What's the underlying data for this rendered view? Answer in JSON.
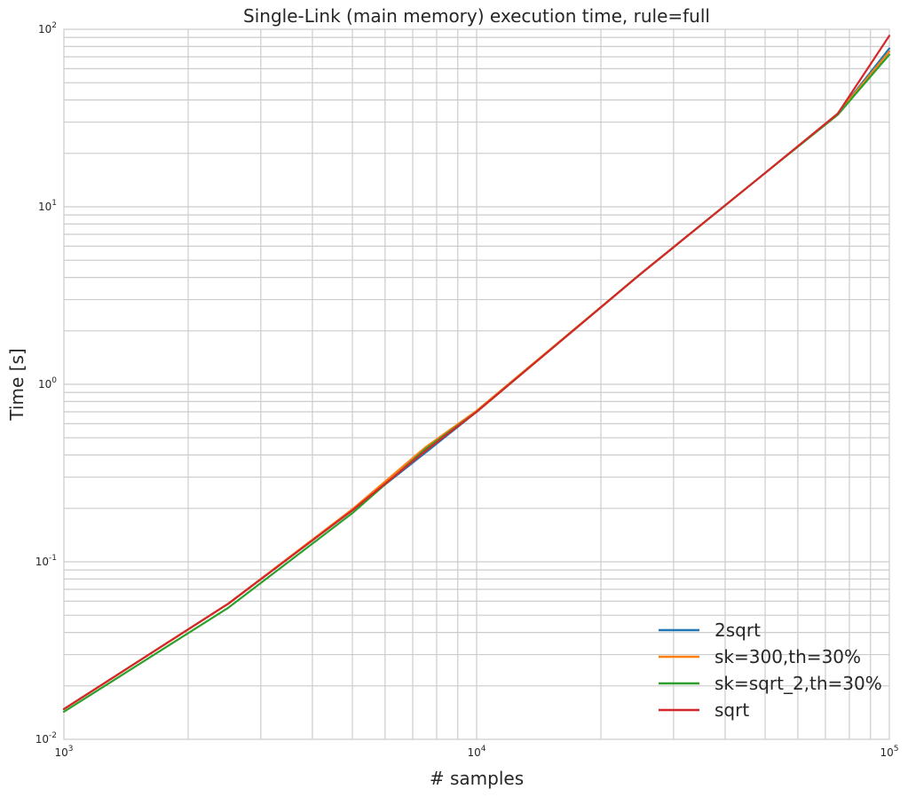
{
  "chart_data": {
    "type": "line",
    "title": "Single-Link (main memory) execution time, rule=full",
    "xlabel": "# samples",
    "ylabel": "Time [s]",
    "xscale": "log",
    "yscale": "log",
    "xlim": [
      1000,
      100000
    ],
    "ylim": [
      0.01,
      100
    ],
    "grid": true,
    "legend_position": "lower-right",
    "x_ticks": [
      {
        "base": "10",
        "exp": "3",
        "value": 1000
      },
      {
        "base": "10",
        "exp": "4",
        "value": 10000
      },
      {
        "base": "10",
        "exp": "5",
        "value": 100000
      }
    ],
    "y_ticks": [
      {
        "base": "10",
        "exp": "-2",
        "value": 0.01
      },
      {
        "base": "10",
        "exp": "-1",
        "value": 0.1
      },
      {
        "base": "10",
        "exp": "0",
        "value": 1
      },
      {
        "base": "10",
        "exp": "1",
        "value": 10
      },
      {
        "base": "10",
        "exp": "2",
        "value": 100
      }
    ],
    "x": [
      1000,
      2500,
      5000,
      7500,
      10000,
      25000,
      50000,
      75000,
      100000
    ],
    "series": [
      {
        "name": "2sqrt",
        "color": "#1f77b4",
        "values": [
          0.0148,
          0.058,
          0.195,
          0.41,
          0.7,
          4.2,
          15.5,
          33.5,
          78
        ]
      },
      {
        "name": "sk=300,th=30%",
        "color": "#ff7f0e",
        "values": [
          0.0148,
          0.058,
          0.198,
          0.44,
          0.71,
          4.2,
          15.5,
          33.5,
          75
        ]
      },
      {
        "name": "sk=sqrt_2,th=30%",
        "color": "#2ca02c",
        "values": [
          0.0143,
          0.055,
          0.188,
          0.43,
          0.7,
          4.2,
          15.5,
          33.0,
          72
        ]
      },
      {
        "name": "sqrt",
        "color": "#d62728",
        "values": [
          0.0148,
          0.058,
          0.195,
          0.42,
          0.7,
          4.2,
          15.5,
          33.5,
          92
        ]
      }
    ]
  }
}
